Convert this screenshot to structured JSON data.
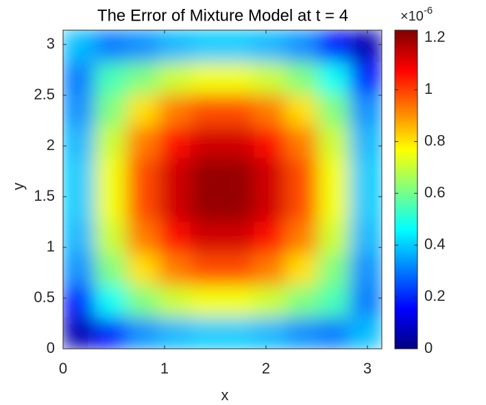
{
  "chart_data": {
    "type": "heatmap",
    "title": "The Error of Mixture Model at t = 4",
    "xlabel": "x",
    "ylabel": "y",
    "x": [
      0.157,
      0.471,
      0.785,
      1.1,
      1.414,
      1.728,
      2.042,
      2.356,
      2.67,
      2.985
    ],
    "y": [
      0.157,
      0.471,
      0.785,
      1.1,
      1.414,
      1.728,
      2.042,
      2.356,
      2.67,
      2.985
    ],
    "z": [
      [
        0.06,
        0.18,
        0.325,
        0.373,
        0.397,
        0.397,
        0.373,
        0.325,
        0.3,
        0.38
      ],
      [
        0.18,
        0.473,
        0.617,
        0.709,
        0.754,
        0.754,
        0.709,
        0.617,
        0.55,
        0.3
      ],
      [
        0.325,
        0.617,
        0.805,
        0.924,
        0.983,
        0.983,
        0.924,
        0.805,
        0.617,
        0.325
      ],
      [
        0.373,
        0.709,
        0.924,
        1.062,
        1.13,
        1.13,
        1.062,
        0.924,
        0.709,
        0.373
      ],
      [
        0.397,
        0.754,
        0.983,
        1.13,
        1.203,
        1.203,
        1.13,
        0.983,
        0.754,
        0.397
      ],
      [
        0.397,
        0.754,
        0.983,
        1.13,
        1.203,
        1.203,
        1.13,
        0.983,
        0.754,
        0.397
      ],
      [
        0.373,
        0.709,
        0.924,
        1.062,
        1.13,
        1.13,
        1.062,
        0.924,
        0.709,
        0.373
      ],
      [
        0.325,
        0.617,
        0.805,
        0.924,
        0.983,
        0.983,
        0.924,
        0.805,
        0.617,
        0.325
      ],
      [
        0.3,
        0.55,
        0.617,
        0.709,
        0.754,
        0.754,
        0.709,
        0.617,
        0.473,
        0.18
      ],
      [
        0.38,
        0.3,
        0.325,
        0.373,
        0.397,
        0.397,
        0.373,
        0.325,
        0.18,
        0.06
      ]
    ],
    "xlim": [
      0,
      3.1416
    ],
    "ylim": [
      0,
      3.1416
    ],
    "xticks": [
      0,
      1,
      2,
      3
    ],
    "yticks": [
      0,
      0.5,
      1,
      1.5,
      2,
      2.5,
      3
    ],
    "colormap": "jet",
    "clim": [
      0,
      1.23
    ],
    "cticks": [
      0,
      0.2,
      0.4,
      0.6,
      0.8,
      1,
      1.2
    ],
    "colorbar_multiplier": {
      "base": "×10",
      "exponent": "-6"
    }
  }
}
